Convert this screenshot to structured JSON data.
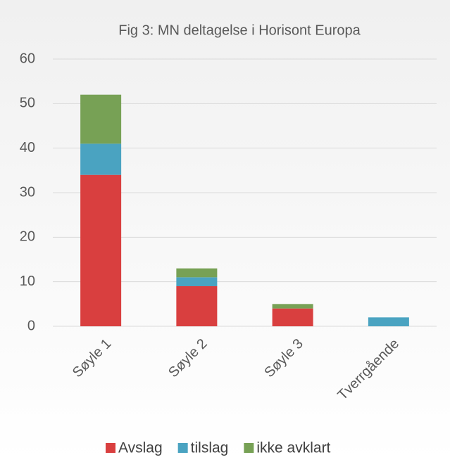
{
  "chart_data": {
    "type": "bar",
    "stacked": true,
    "title": "Fig 3: MN deltagelse i Horisont Europa",
    "categories": [
      "Søyle 1",
      "Søyle 2",
      "Søyle 3",
      "Tverrgående"
    ],
    "series": [
      {
        "name": "Avslag",
        "color": "#d93f3f",
        "values": [
          34,
          9,
          4,
          0
        ]
      },
      {
        "name": "tilslag",
        "color": "#4aa3c1",
        "values": [
          7,
          2,
          0,
          2
        ]
      },
      {
        "name": "ikke avklart",
        "color": "#77a155",
        "values": [
          11,
          2,
          1,
          0
        ]
      }
    ],
    "ylim": [
      0,
      60
    ],
    "yticks": [
      0,
      10,
      20,
      30,
      40,
      50,
      60
    ],
    "grid": true,
    "legend": "bottom"
  }
}
